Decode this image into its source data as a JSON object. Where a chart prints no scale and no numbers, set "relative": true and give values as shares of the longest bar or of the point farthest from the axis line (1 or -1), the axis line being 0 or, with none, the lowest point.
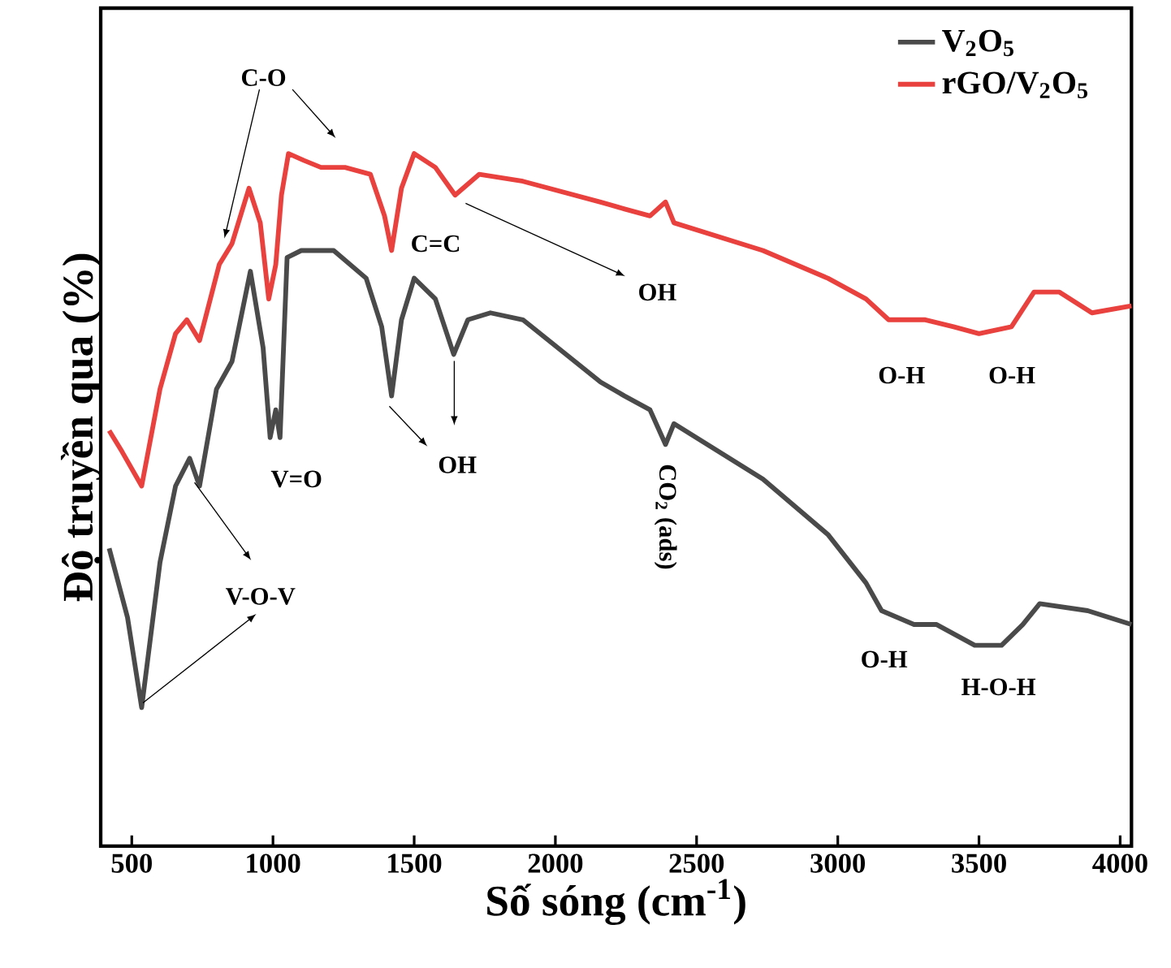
{
  "chart_data": {
    "type": "line",
    "relative": true,
    "xlabel": "Số sóng (cm$^{-1}$)",
    "ylabel": "Độ truyền qua  (%)",
    "xlim": [
      390,
      4040
    ],
    "xticks": [
      500,
      1000,
      1500,
      2000,
      2500,
      3000,
      3500,
      4000
    ],
    "tick_labels": "x",
    "legend": "top right",
    "marker": "none",
    "line_style": "solid",
    "series": [
      {
        "name": "V$_{2}$O$_{5}$",
        "color": "#4a4a4a",
        "x": [
          420,
          485,
          535,
          600,
          655,
          705,
          740,
          800,
          855,
          920,
          965,
          990,
          1010,
          1025,
          1050,
          1100,
          1215,
          1330,
          1385,
          1420,
          1455,
          1500,
          1575,
          1640,
          1690,
          1770,
          1885,
          2160,
          2245,
          2335,
          2390,
          2420,
          2735,
          2965,
          3100,
          3155,
          3270,
          3350,
          3485,
          3580,
          3655,
          3715,
          3885,
          4040
        ],
        "values": [
          0.43,
          0.33,
          0.2,
          0.41,
          0.52,
          0.56,
          0.52,
          0.66,
          0.7,
          0.83,
          0.72,
          0.59,
          0.63,
          0.59,
          0.85,
          0.86,
          0.86,
          0.82,
          0.75,
          0.65,
          0.76,
          0.82,
          0.79,
          0.71,
          0.76,
          0.77,
          0.76,
          0.67,
          0.65,
          0.63,
          0.58,
          0.61,
          0.53,
          0.45,
          0.38,
          0.34,
          0.32,
          0.32,
          0.29,
          0.29,
          0.32,
          0.35,
          0.34,
          0.32
        ]
      },
      {
        "name": "rGO/V$_{2}$O$_{5}$",
        "color": "#e8413e",
        "x": [
          420,
          465,
          535,
          600,
          655,
          695,
          740,
          810,
          855,
          915,
          955,
          985,
          1010,
          1030,
          1055,
          1110,
          1170,
          1255,
          1345,
          1395,
          1420,
          1455,
          1500,
          1575,
          1645,
          1730,
          1885,
          2160,
          2245,
          2335,
          2390,
          2420,
          2735,
          2965,
          3100,
          3180,
          3310,
          3410,
          3500,
          3615,
          3695,
          3785,
          3900,
          4040
        ],
        "values": [
          0.6,
          0.57,
          0.52,
          0.66,
          0.74,
          0.76,
          0.73,
          0.84,
          0.87,
          0.95,
          0.9,
          0.79,
          0.84,
          0.94,
          1.0,
          0.99,
          0.98,
          0.98,
          0.97,
          0.91,
          0.86,
          0.95,
          1.0,
          0.98,
          0.94,
          0.97,
          0.96,
          0.93,
          0.92,
          0.91,
          0.93,
          0.9,
          0.86,
          0.82,
          0.79,
          0.76,
          0.76,
          0.75,
          0.74,
          0.75,
          0.8,
          0.8,
          0.77,
          0.78
        ]
      }
    ],
    "annotations": [
      "C-O",
      "V=O",
      "C=C",
      "OH",
      "OH",
      "CO$_{2}$ (ads)",
      "O-H",
      "O-H",
      "O-H",
      "H-O-H",
      "V-O-V"
    ]
  }
}
